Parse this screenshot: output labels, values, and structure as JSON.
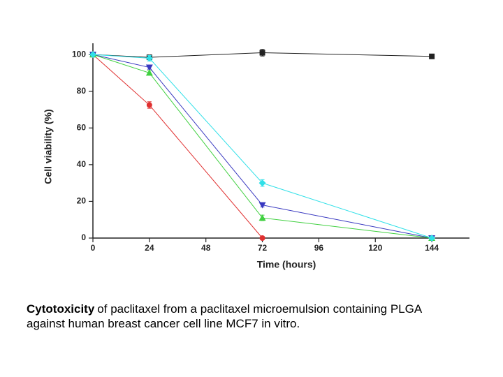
{
  "chart_data": {
    "type": "line",
    "x_label": "Time (hours)",
    "y_label": "Cell viability (%)",
    "x": [
      0,
      24,
      72,
      144
    ],
    "xlim": [
      0,
      160
    ],
    "ylim": [
      0,
      105
    ],
    "xticks": [
      0,
      24,
      48,
      72,
      96,
      120,
      144
    ],
    "yticks": [
      0,
      20,
      40,
      60,
      80,
      100
    ],
    "series": [
      {
        "color": "#222222",
        "marker": "square",
        "values": [
          100,
          98.5,
          101,
          99
        ],
        "errors": [
          0.5,
          1,
          1.8,
          0.5
        ]
      },
      {
        "color": "#e03030",
        "marker": "circle",
        "values": [
          100,
          72.5,
          0,
          null
        ],
        "errors": [
          0.5,
          1.8,
          0.5,
          null
        ]
      },
      {
        "color": "#3838c0",
        "marker": "triangle-down",
        "values": [
          100,
          93,
          18,
          0
        ],
        "errors": [
          0.5,
          1,
          1,
          0.5
        ]
      },
      {
        "color": "#40d040",
        "marker": "triangle-up",
        "values": [
          100,
          90,
          11,
          0
        ],
        "errors": [
          0.5,
          1.2,
          1.5,
          0.5
        ]
      },
      {
        "color": "#30e0e8",
        "marker": "diamond",
        "values": [
          100,
          98,
          30,
          0
        ],
        "errors": [
          0.5,
          1.5,
          1.8,
          0.5
        ]
      }
    ]
  },
  "caption": {
    "bold": "Cytotoxicity",
    "text": "of paclitaxel from a paclitaxel microemulsion containing PLGA against human breast cancer cell line MCF7 in vitro."
  }
}
